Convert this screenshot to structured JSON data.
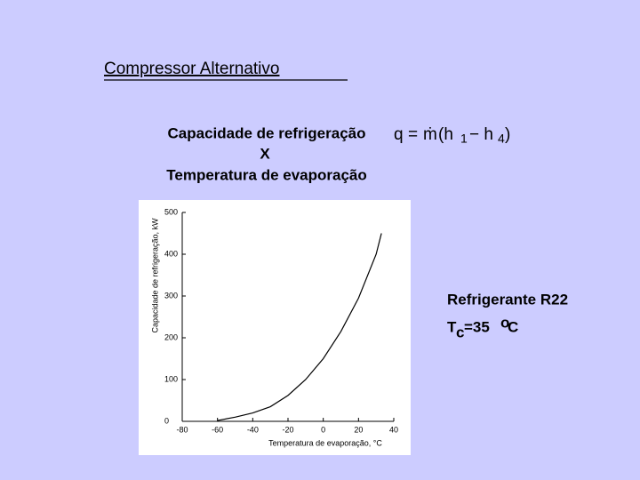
{
  "slide": {
    "title": "Compressor Alternativo",
    "heading": [
      "Capacidade de refrigeração",
      "X",
      "Temperatura de evaporação"
    ],
    "formula": {
      "q": "q",
      "eq": "=",
      "m": "ṁ",
      "open": "(h",
      "sub1": "1",
      "minus": "− h",
      "sub2": "4",
      "close": ")"
    },
    "refrigerant": "Refrigerante R22",
    "tc": {
      "t": "T",
      "sub": "c",
      "eq": "=35 ",
      "sup": "o",
      "unit": "C"
    }
  },
  "chart_data": {
    "type": "line",
    "xlabel": "Temperatura de evaporação, °C",
    "ylabel": "Capacidade de refrigeração, kW",
    "x": [
      -60,
      -50,
      -40,
      -30,
      -20,
      -10,
      0,
      10,
      20,
      30,
      33
    ],
    "series": [
      {
        "color": "#000000",
        "values": [
          2,
          10,
          20,
          35,
          62,
          100,
          150,
          215,
          295,
          400,
          450
        ]
      }
    ],
    "xlim": [
      -80,
      40
    ],
    "ylim": [
      0,
      500
    ],
    "xticks": [
      -80,
      -60,
      -40,
      -20,
      0,
      20,
      40
    ],
    "yticks": [
      0,
      100,
      200,
      300,
      400,
      500
    ]
  }
}
